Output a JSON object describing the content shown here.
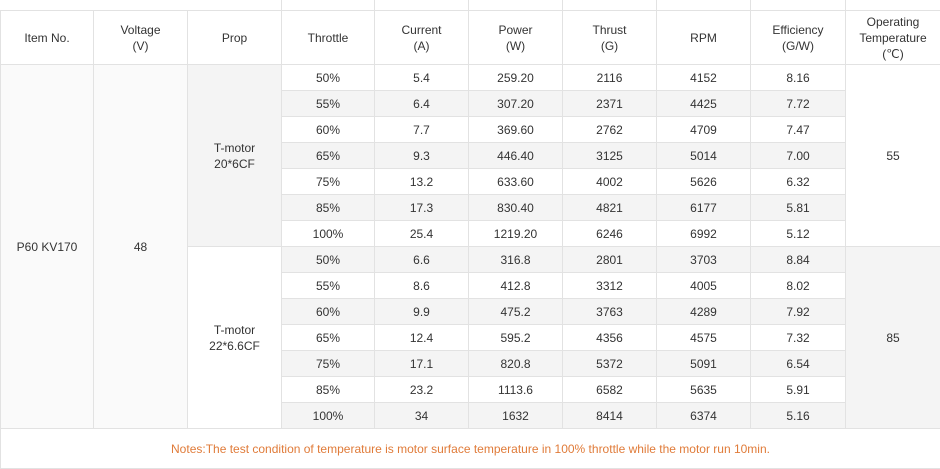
{
  "table": {
    "header": [
      [
        "Item No."
      ],
      [
        "Voltage",
        "(V)"
      ],
      [
        "Prop"
      ],
      [
        "Throttle"
      ],
      [
        "Current",
        "(A)"
      ],
      [
        "Power",
        "(W)"
      ],
      [
        "Thrust",
        "(G)"
      ],
      [
        "RPM"
      ],
      [
        "Efficiency",
        "(G/W)"
      ],
      [
        "Operating",
        "Temperature",
        "(℃)"
      ]
    ],
    "item": "P60 KV170",
    "voltage": "48",
    "groups": [
      {
        "prop": [
          "T-motor",
          "20*6CF"
        ],
        "temperature": "55",
        "rows": [
          [
            "50%",
            "5.4",
            "259.20",
            "2116",
            "4152",
            "8.16"
          ],
          [
            "55%",
            "6.4",
            "307.20",
            "2371",
            "4425",
            "7.72"
          ],
          [
            "60%",
            "7.7",
            "369.60",
            "2762",
            "4709",
            "7.47"
          ],
          [
            "65%",
            "9.3",
            "446.40",
            "3125",
            "5014",
            "7.00"
          ],
          [
            "75%",
            "13.2",
            "633.60",
            "4002",
            "5626",
            "6.32"
          ],
          [
            "85%",
            "17.3",
            "830.40",
            "4821",
            "6177",
            "5.81"
          ],
          [
            "100%",
            "25.4",
            "1219.20",
            "6246",
            "6992",
            "5.12"
          ]
        ]
      },
      {
        "prop": [
          "T-motor",
          "22*6.6CF"
        ],
        "temperature": "85",
        "rows": [
          [
            "50%",
            "6.6",
            "316.8",
            "2801",
            "3703",
            "8.84"
          ],
          [
            "55%",
            "8.6",
            "412.8",
            "3312",
            "4005",
            "8.02"
          ],
          [
            "60%",
            "9.9",
            "475.2",
            "3763",
            "4289",
            "7.92"
          ],
          [
            "65%",
            "12.4",
            "595.2",
            "4356",
            "4575",
            "7.32"
          ],
          [
            "75%",
            "17.1",
            "820.8",
            "5372",
            "5091",
            "6.54"
          ],
          [
            "85%",
            "23.2",
            "1113.6",
            "6582",
            "5635",
            "5.91"
          ],
          [
            "100%",
            "34",
            "1632",
            "8414",
            "6374",
            "5.16"
          ]
        ]
      }
    ],
    "notes": "Notes:The test condition of temperature is motor surface temperature in 100% throttle while the motor run 10min."
  }
}
